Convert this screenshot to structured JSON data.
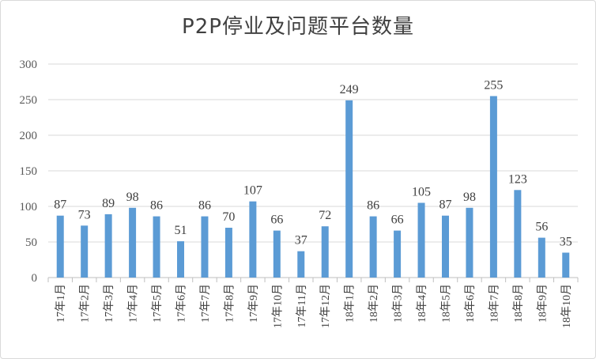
{
  "chart_data": {
    "type": "bar",
    "title": "P2P停业及问题平台数量",
    "xlabel": "",
    "ylabel": "",
    "categories": [
      "17年1月",
      "17年2月",
      "17年3月",
      "17年4月",
      "17年5月",
      "17年6月",
      "17年7月",
      "17年8月",
      "17年9月",
      "17年10月",
      "17年11月",
      "17年12月",
      "18年1月",
      "18年2月",
      "18年3月",
      "18年4月",
      "18年5月",
      "18年6月",
      "18年7月",
      "18年8月",
      "18年9月",
      "18年10月"
    ],
    "values": [
      87,
      73,
      89,
      98,
      86,
      51,
      86,
      70,
      107,
      66,
      37,
      72,
      249,
      86,
      66,
      105,
      87,
      98,
      255,
      123,
      56,
      35
    ],
    "ylim": [
      0,
      300
    ],
    "yticks": [
      0,
      50,
      100,
      150,
      200,
      250,
      300
    ],
    "grid": true,
    "legend": "none",
    "bar_color": "#5b9bd5",
    "grid_color": "#d9d9d9"
  }
}
